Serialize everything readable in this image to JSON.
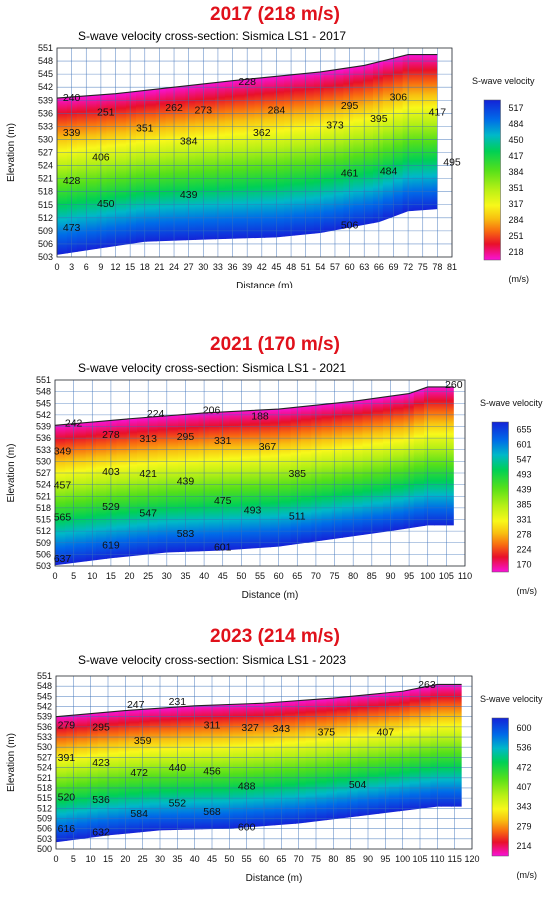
{
  "panels": [
    {
      "heading": "2017 (218 m/s)",
      "chart_data": {
        "type": "heatmap",
        "title": "S-wave velocity cross-section: Sismica LS1 - 2017",
        "xlabel": "Distance (m)",
        "ylabel": "Elevation (m)",
        "xticks": [
          "0",
          "3",
          "6",
          "9",
          "12",
          "15",
          "18",
          "21",
          "24",
          "27",
          "30",
          "33",
          "36",
          "39",
          "42",
          "45",
          "48",
          "51",
          "54",
          "57",
          "60",
          "63",
          "66",
          "69",
          "72",
          "75",
          "78",
          "81"
        ],
        "yticks": [
          "551",
          "548",
          "545",
          "542",
          "539",
          "536",
          "533",
          "530",
          "527",
          "524",
          "521",
          "518",
          "515",
          "512",
          "509",
          "506",
          "503"
        ],
        "xlim": [
          0,
          81
        ],
        "ylim": [
          503,
          551
        ],
        "legend_title": "S-wave velocity",
        "legend_unit": "(m/s)",
        "legend_values": [
          "517",
          "484",
          "450",
          "417",
          "384",
          "351",
          "317",
          "284",
          "251",
          "218"
        ],
        "surface": [
          [
            0,
            539.5
          ],
          [
            12,
            540.5
          ],
          [
            24,
            542
          ],
          [
            36,
            543.5
          ],
          [
            45,
            544.5
          ],
          [
            54,
            545.5
          ],
          [
            63,
            547
          ],
          [
            72,
            549.5
          ],
          [
            78,
            549.5
          ]
        ],
        "bottom": [
          [
            0,
            503.5
          ],
          [
            9,
            505
          ],
          [
            18,
            506.5
          ],
          [
            30,
            507
          ],
          [
            45,
            507.5
          ],
          [
            54,
            508.5
          ],
          [
            66,
            511
          ],
          [
            72,
            513.5
          ],
          [
            78,
            514
          ]
        ],
        "values": [
          {
            "x": 3,
            "y": 538.8,
            "v": "240"
          },
          {
            "x": 39,
            "y": 542.5,
            "v": "228"
          },
          {
            "x": 10,
            "y": 535.5,
            "v": "251"
          },
          {
            "x": 24,
            "y": 536.5,
            "v": "262"
          },
          {
            "x": 30,
            "y": 536,
            "v": "273"
          },
          {
            "x": 45,
            "y": 536,
            "v": "284"
          },
          {
            "x": 60,
            "y": 537,
            "v": "295"
          },
          {
            "x": 70,
            "y": 539,
            "v": "306"
          },
          {
            "x": 78,
            "y": 535.5,
            "v": "417"
          },
          {
            "x": 3,
            "y": 530.8,
            "v": "339"
          },
          {
            "x": 18,
            "y": 531.8,
            "v": "351"
          },
          {
            "x": 27,
            "y": 528.8,
            "v": "384"
          },
          {
            "x": 42,
            "y": 530.8,
            "v": "362"
          },
          {
            "x": 57,
            "y": 532.5,
            "v": "373"
          },
          {
            "x": 66,
            "y": 534,
            "v": "395"
          },
          {
            "x": 9,
            "y": 525.2,
            "v": "406"
          },
          {
            "x": 3,
            "y": 519.8,
            "v": "428"
          },
          {
            "x": 27,
            "y": 516.5,
            "v": "439"
          },
          {
            "x": 10,
            "y": 514.5,
            "v": "450"
          },
          {
            "x": 60,
            "y": 521.5,
            "v": "461"
          },
          {
            "x": 68,
            "y": 522,
            "v": "484"
          },
          {
            "x": 81,
            "y": 524,
            "v": "495"
          },
          {
            "x": 3,
            "y": 509,
            "v": "473"
          },
          {
            "x": 60,
            "y": 509.5,
            "v": "506"
          }
        ]
      }
    },
    {
      "heading": "2021 (170 m/s)",
      "chart_data": {
        "type": "heatmap",
        "title": "S-wave velocity cross-section: Sismica LS1 - 2021",
        "xlabel": "Distance (m)",
        "ylabel": "Elevation (m)",
        "xticks": [
          "0",
          "5",
          "10",
          "15",
          "20",
          "25",
          "30",
          "35",
          "40",
          "45",
          "50",
          "55",
          "60",
          "65",
          "70",
          "75",
          "80",
          "85",
          "90",
          "95",
          "100",
          "105",
          "110"
        ],
        "yticks": [
          "551",
          "548",
          "545",
          "542",
          "539",
          "536",
          "533",
          "530",
          "527",
          "524",
          "521",
          "518",
          "515",
          "512",
          "509",
          "506",
          "503"
        ],
        "xlim": [
          0,
          110
        ],
        "ylim": [
          503,
          551
        ],
        "legend_title": "S-wave velocity",
        "legend_unit": "(m/s)",
        "legend_values": [
          "655",
          "601",
          "547",
          "493",
          "439",
          "385",
          "331",
          "278",
          "224",
          "170"
        ],
        "surface": [
          [
            0,
            539.3
          ],
          [
            20,
            541
          ],
          [
            40,
            542.5
          ],
          [
            60,
            543.5
          ],
          [
            80,
            545.5
          ],
          [
            95,
            547.5
          ],
          [
            100,
            549.2
          ],
          [
            107,
            549.2
          ]
        ],
        "bottom": [
          [
            0,
            503.2
          ],
          [
            15,
            505
          ],
          [
            30,
            506.5
          ],
          [
            45,
            507
          ],
          [
            60,
            508
          ],
          [
            75,
            510
          ],
          [
            90,
            512
          ],
          [
            100,
            513.5
          ],
          [
            107,
            513.5
          ]
        ],
        "values": [
          {
            "x": 5,
            "y": 539,
            "v": "242"
          },
          {
            "x": 27,
            "y": 541.5,
            "v": "224"
          },
          {
            "x": 42,
            "y": 542.3,
            "v": "206"
          },
          {
            "x": 55,
            "y": 540.8,
            "v": "188"
          },
          {
            "x": 107,
            "y": 549,
            "v": "260"
          },
          {
            "x": 15,
            "y": 536,
            "v": "278"
          },
          {
            "x": 25,
            "y": 535,
            "v": "313"
          },
          {
            "x": 35,
            "y": 535.5,
            "v": "295"
          },
          {
            "x": 45,
            "y": 534.5,
            "v": "331"
          },
          {
            "x": 57,
            "y": 533,
            "v": "367"
          },
          {
            "x": 2,
            "y": 531.8,
            "v": "349"
          },
          {
            "x": 15,
            "y": 526.5,
            "v": "403"
          },
          {
            "x": 25,
            "y": 526,
            "v": "421"
          },
          {
            "x": 35,
            "y": 524,
            "v": "439"
          },
          {
            "x": 65,
            "y": 526,
            "v": "385"
          },
          {
            "x": 2,
            "y": 523,
            "v": "457"
          },
          {
            "x": 45,
            "y": 519,
            "v": "475"
          },
          {
            "x": 53,
            "y": 516.5,
            "v": "493"
          },
          {
            "x": 65,
            "y": 515,
            "v": "511"
          },
          {
            "x": 15,
            "y": 517.5,
            "v": "529"
          },
          {
            "x": 25,
            "y": 515.8,
            "v": "547"
          },
          {
            "x": 2,
            "y": 514.7,
            "v": "565"
          },
          {
            "x": 35,
            "y": 510.5,
            "v": "583"
          },
          {
            "x": 15,
            "y": 507.5,
            "v": "619"
          },
          {
            "x": 45,
            "y": 507,
            "v": "601"
          },
          {
            "x": 2,
            "y": 504,
            "v": "637"
          }
        ]
      }
    },
    {
      "heading": "2023 (214 m/s)",
      "chart_data": {
        "type": "heatmap",
        "title": "S-wave velocity cross-section: Sismica LS1 - 2023",
        "xlabel": "Distance (m)",
        "ylabel": "Elevation (m)",
        "xticks": [
          "0",
          "5",
          "10",
          "15",
          "20",
          "25",
          "30",
          "35",
          "40",
          "45",
          "50",
          "55",
          "60",
          "65",
          "70",
          "75",
          "80",
          "85",
          "90",
          "95",
          "100",
          "105",
          "110",
          "115",
          "120"
        ],
        "yticks": [
          "551",
          "548",
          "545",
          "542",
          "539",
          "536",
          "533",
          "530",
          "527",
          "524",
          "521",
          "518",
          "515",
          "512",
          "509",
          "506",
          "503",
          "500"
        ],
        "xlim": [
          0,
          120
        ],
        "ylim": [
          500,
          551
        ],
        "legend_title": "S-wave velocity",
        "legend_unit": "(m/s)",
        "legend_values": [
          "600",
          "536",
          "472",
          "407",
          "343",
          "279",
          "214"
        ],
        "surface": [
          [
            0,
            539
          ],
          [
            20,
            540.8
          ],
          [
            40,
            542.2
          ],
          [
            60,
            543
          ],
          [
            80,
            544.5
          ],
          [
            100,
            546.5
          ],
          [
            110,
            548.5
          ],
          [
            117,
            548.5
          ]
        ],
        "bottom": [
          [
            0,
            502
          ],
          [
            15,
            504
          ],
          [
            30,
            505.5
          ],
          [
            50,
            506
          ],
          [
            70,
            507.5
          ],
          [
            90,
            510
          ],
          [
            110,
            512.5
          ],
          [
            117,
            512.5
          ]
        ],
        "values": [
          {
            "x": 23,
            "y": 541.5,
            "v": "247"
          },
          {
            "x": 35,
            "y": 542.5,
            "v": "231"
          },
          {
            "x": 107,
            "y": 547.5,
            "v": "263"
          },
          {
            "x": 3,
            "y": 535.5,
            "v": "279"
          },
          {
            "x": 13,
            "y": 535,
            "v": "295"
          },
          {
            "x": 45,
            "y": 535.5,
            "v": "311"
          },
          {
            "x": 56,
            "y": 534.8,
            "v": "327"
          },
          {
            "x": 65,
            "y": 534.5,
            "v": "343"
          },
          {
            "x": 78,
            "y": 533.5,
            "v": "375"
          },
          {
            "x": 95,
            "y": 533.5,
            "v": "407"
          },
          {
            "x": 25,
            "y": 531,
            "v": "359"
          },
          {
            "x": 3,
            "y": 526,
            "v": "391"
          },
          {
            "x": 13,
            "y": 524.5,
            "v": "423"
          },
          {
            "x": 24,
            "y": 521.5,
            "v": "472"
          },
          {
            "x": 35,
            "y": 523,
            "v": "440"
          },
          {
            "x": 45,
            "y": 522,
            "v": "456"
          },
          {
            "x": 55,
            "y": 517.5,
            "v": "488"
          },
          {
            "x": 87,
            "y": 518,
            "v": "504"
          },
          {
            "x": 3,
            "y": 514.3,
            "v": "520"
          },
          {
            "x": 13,
            "y": 513.5,
            "v": "536"
          },
          {
            "x": 35,
            "y": 512.5,
            "v": "552"
          },
          {
            "x": 24,
            "y": 509.5,
            "v": "584"
          },
          {
            "x": 45,
            "y": 510,
            "v": "568"
          },
          {
            "x": 55,
            "y": 505.5,
            "v": "600"
          },
          {
            "x": 3,
            "y": 505,
            "v": "616"
          },
          {
            "x": 13,
            "y": 504,
            "v": "632"
          }
        ]
      }
    }
  ]
}
